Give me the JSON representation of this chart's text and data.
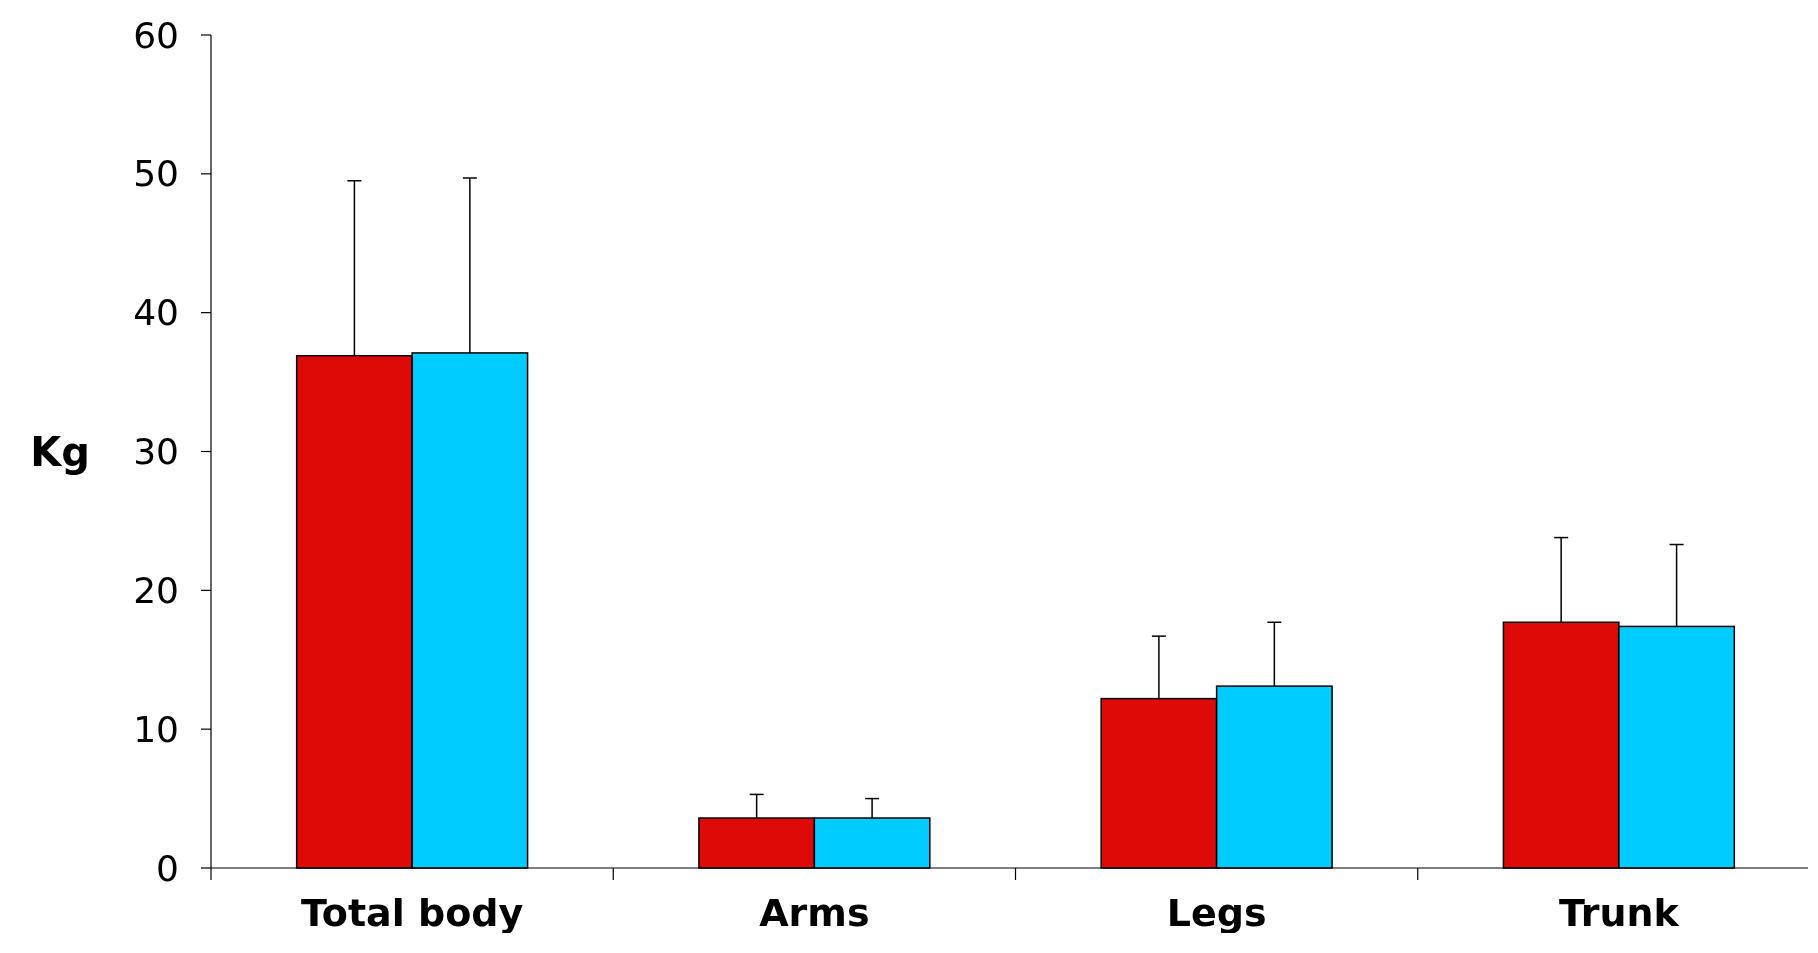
{
  "chart_data": {
    "type": "bar",
    "ylabel": "Kg",
    "categories": [
      "Total body",
      "Arms",
      "Legs",
      "Trunk"
    ],
    "series": [
      {
        "color": "#dd0a07",
        "values": [
          36.9,
          3.6,
          12.2,
          17.7
        ],
        "errors": [
          [
            36.9,
            49.5
          ],
          [
            3.6,
            5.3
          ],
          [
            12.2,
            16.7
          ],
          [
            17.7,
            23.8
          ]
        ]
      },
      {
        "color": "#00ccff",
        "values": [
          37.1,
          3.6,
          13.1,
          17.4
        ],
        "errors": [
          [
            37.1,
            49.7
          ],
          [
            3.6,
            5.0
          ],
          [
            13.1,
            17.7
          ],
          [
            17.4,
            23.3
          ]
        ]
      }
    ],
    "ylim": [
      0,
      60
    ],
    "yticks": [
      0,
      10,
      20,
      30,
      40,
      50,
      60
    ],
    "grid": false
  }
}
